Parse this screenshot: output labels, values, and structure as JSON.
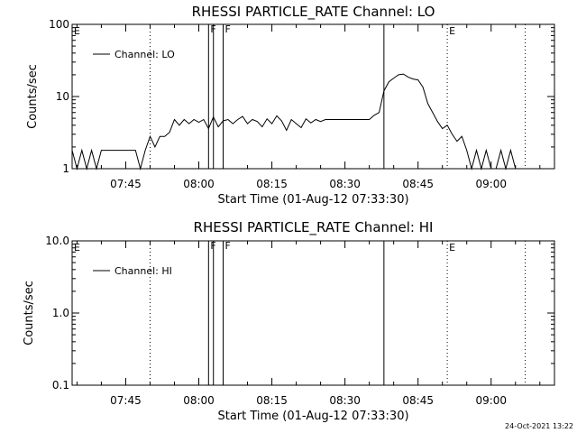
{
  "chart_data": [
    {
      "type": "line",
      "title": "RHESSI PARTICLE_RATE Channel: LO",
      "xlabel": "Start Time (01-Aug-12 07:33:30)",
      "ylabel": "Counts/sec",
      "yscale": "log",
      "ylim": [
        1,
        100
      ],
      "ytick_labels": [
        "1",
        "10",
        "100"
      ],
      "ytick_values": [
        1,
        10,
        100
      ],
      "xlim": [
        "07:34",
        "09:13"
      ],
      "xtick_labels": [
        "07:45",
        "08:00",
        "08:15",
        "08:30",
        "08:45",
        "09:00"
      ],
      "xtick_values": [
        "07:45",
        "08:00",
        "08:15",
        "08:30",
        "08:45",
        "09:00"
      ],
      "legend": "top-left",
      "series": [
        {
          "name": "Channel: LO",
          "points": [
            [
              "07:34",
              1.8
            ],
            [
              "07:35",
              1.0
            ],
            [
              "07:36",
              1.8
            ],
            [
              "07:37",
              1.0
            ],
            [
              "07:38",
              1.8
            ],
            [
              "07:39",
              1.0
            ],
            [
              "07:40",
              1.8
            ],
            [
              "07:41",
              1.8
            ],
            [
              "07:42",
              1.8
            ],
            [
              "07:43",
              1.8
            ],
            [
              "07:44",
              1.8
            ],
            [
              "07:45",
              1.8
            ],
            [
              "07:46",
              1.8
            ],
            [
              "07:47",
              1.8
            ],
            [
              "07:48",
              1.0
            ],
            [
              "07:49",
              1.8
            ],
            [
              "07:50",
              2.8
            ],
            [
              "07:51",
              2.0
            ],
            [
              "07:52",
              2.8
            ],
            [
              "07:53",
              2.8
            ],
            [
              "07:54",
              3.2
            ],
            [
              "07:55",
              4.8
            ],
            [
              "07:56",
              4.0
            ],
            [
              "07:57",
              4.8
            ],
            [
              "07:58",
              4.2
            ],
            [
              "07:59",
              4.8
            ],
            [
              "08:00",
              4.4
            ],
            [
              "08:01",
              4.8
            ],
            [
              "08:02",
              3.6
            ],
            [
              "08:03",
              5.2
            ],
            [
              "08:04",
              3.8
            ],
            [
              "08:05",
              4.6
            ],
            [
              "08:06",
              4.8
            ],
            [
              "08:07",
              4.2
            ],
            [
              "08:08",
              4.8
            ],
            [
              "08:09",
              5.3
            ],
            [
              "08:10",
              4.2
            ],
            [
              "08:11",
              4.8
            ],
            [
              "08:12",
              4.5
            ],
            [
              "08:13",
              3.8
            ],
            [
              "08:14",
              4.9
            ],
            [
              "08:15",
              4.2
            ],
            [
              "08:16",
              5.4
            ],
            [
              "08:17",
              4.6
            ],
            [
              "08:18",
              3.4
            ],
            [
              "08:19",
              4.8
            ],
            [
              "08:20",
              4.2
            ],
            [
              "08:21",
              3.7
            ],
            [
              "08:22",
              4.9
            ],
            [
              "08:23",
              4.3
            ],
            [
              "08:24",
              4.8
            ],
            [
              "08:25",
              4.5
            ],
            [
              "08:26",
              4.8
            ],
            [
              "08:27",
              4.8
            ],
            [
              "08:28",
              4.8
            ],
            [
              "08:29",
              4.8
            ],
            [
              "08:30",
              4.8
            ],
            [
              "08:31",
              4.8
            ],
            [
              "08:32",
              4.8
            ],
            [
              "08:33",
              4.8
            ],
            [
              "08:34",
              4.8
            ],
            [
              "08:35",
              4.8
            ],
            [
              "08:36",
              5.5
            ],
            [
              "08:37",
              6.0
            ],
            [
              "08:38",
              12.0
            ],
            [
              "08:39",
              16.0
            ],
            [
              "08:40",
              18.0
            ],
            [
              "08:41",
              20.0
            ],
            [
              "08:42",
              20.5
            ],
            [
              "08:43",
              18.5
            ],
            [
              "08:44",
              17.5
            ],
            [
              "08:45",
              17.0
            ],
            [
              "08:46",
              13.5
            ],
            [
              "08:47",
              8.0
            ],
            [
              "08:48",
              6.0
            ],
            [
              "08:49",
              4.5
            ],
            [
              "08:50",
              3.6
            ],
            [
              "08:51",
              4.0
            ],
            [
              "08:52",
              3.0
            ],
            [
              "08:53",
              2.4
            ],
            [
              "08:54",
              2.8
            ],
            [
              "08:55",
              1.8
            ],
            [
              "08:56",
              1.0
            ],
            [
              "08:57",
              1.8
            ],
            [
              "08:58",
              1.0
            ],
            [
              "08:59",
              1.8
            ],
            [
              "09:00",
              1.0
            ],
            [
              "09:01",
              1.0
            ],
            [
              "09:02",
              1.8
            ],
            [
              "09:03",
              1.0
            ],
            [
              "09:04",
              1.8
            ],
            [
              "09:05",
              1.0
            ],
            [
              "09:06",
              1.0
            ],
            [
              "09:07",
              1.0
            ],
            [
              "09:08",
              1.0
            ],
            [
              "09:09",
              1.0
            ],
            [
              "09:10",
              1.0
            ],
            [
              "09:11",
              1.0
            ],
            [
              "09:12",
              1.0
            ],
            [
              "09:13",
              1.0
            ]
          ]
        }
      ],
      "vlines": [
        {
          "x": "07:50",
          "style": "dotted"
        },
        {
          "x": "08:02",
          "style": "solid",
          "label": "F"
        },
        {
          "x": "08:03",
          "style": "solid"
        },
        {
          "x": "08:05",
          "style": "solid",
          "label": "F"
        },
        {
          "x": "08:38",
          "style": "solid"
        },
        {
          "x": "08:51",
          "style": "dotted"
        },
        {
          "x": "09:07",
          "style": "dotted"
        }
      ],
      "edge_labels": [
        {
          "x": "07:34",
          "label": "E"
        },
        {
          "x": "08:51",
          "label": "E"
        }
      ]
    },
    {
      "type": "line",
      "title": "RHESSI PARTICLE_RATE Channel: HI",
      "xlabel": "Start Time (01-Aug-12 07:33:30)",
      "ylabel": "Counts/sec",
      "yscale": "log",
      "ylim": [
        0.1,
        10.0
      ],
      "ytick_labels": [
        "0.1",
        "1.0",
        "10.0"
      ],
      "ytick_values": [
        0.1,
        1.0,
        10.0
      ],
      "xlim": [
        "07:34",
        "09:13"
      ],
      "xtick_labels": [
        "07:45",
        "08:00",
        "08:15",
        "08:30",
        "08:45",
        "09:00"
      ],
      "xtick_values": [
        "07:45",
        "08:00",
        "08:15",
        "08:30",
        "08:45",
        "09:00"
      ],
      "legend": "top-left",
      "series": [
        {
          "name": "Channel: HI",
          "points": []
        }
      ],
      "vlines": [
        {
          "x": "07:50",
          "style": "dotted"
        },
        {
          "x": "08:02",
          "style": "solid",
          "label": "F"
        },
        {
          "x": "08:03",
          "style": "solid"
        },
        {
          "x": "08:05",
          "style": "solid",
          "label": "F"
        },
        {
          "x": "08:38",
          "style": "solid"
        },
        {
          "x": "08:51",
          "style": "dotted"
        },
        {
          "x": "09:07",
          "style": "dotted"
        }
      ],
      "edge_labels": [
        {
          "x": "07:34",
          "label": "E"
        },
        {
          "x": "08:51",
          "label": "E"
        }
      ]
    }
  ],
  "footer": {
    "timestamp": "24-Oct-2021 13:22"
  }
}
